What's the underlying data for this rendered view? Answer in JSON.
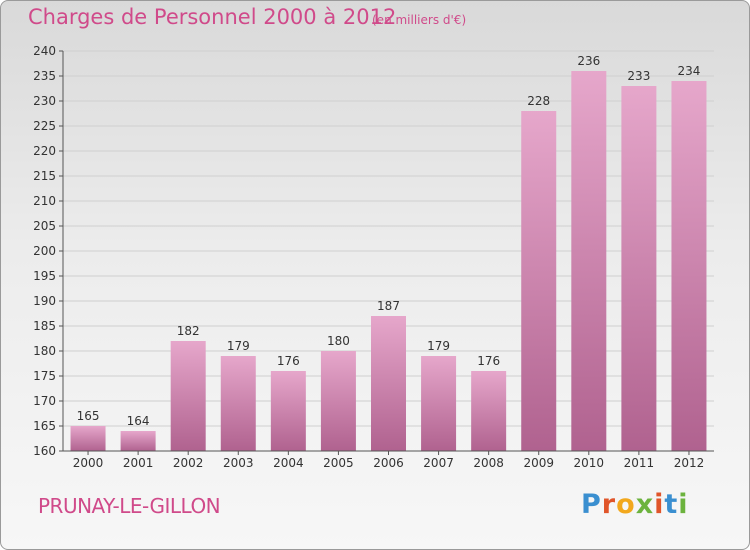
{
  "title": "Charges de Personnel 2000 à 2012",
  "subtitle": "(en milliers d'€)",
  "place": "PRUNAY-LE-GILLON",
  "logo": {
    "letters": [
      "P",
      "r",
      "o",
      "x",
      "i",
      "t",
      "i"
    ],
    "colors": [
      "#3a8fd0",
      "#e0552a",
      "#f2a81d",
      "#6cb33e",
      "#e0552a",
      "#3a8fd0",
      "#6cb33e"
    ]
  },
  "chart_data": {
    "type": "bar",
    "categories": [
      "2000",
      "2001",
      "2002",
      "2003",
      "2004",
      "2005",
      "2006",
      "2007",
      "2008",
      "2009",
      "2010",
      "2011",
      "2012"
    ],
    "values": [
      165,
      164,
      182,
      179,
      176,
      180,
      187,
      179,
      176,
      228,
      236,
      233,
      234
    ],
    "ylim": [
      160,
      240
    ],
    "yticks": [
      160,
      165,
      170,
      175,
      180,
      185,
      190,
      195,
      200,
      205,
      210,
      215,
      220,
      225,
      230,
      235,
      240
    ],
    "grid": true,
    "colors": {
      "bar_top": "#e6a7cb",
      "bar_bottom": "#b0628f",
      "text": "#333333",
      "accent": "#d04a8a"
    }
  }
}
